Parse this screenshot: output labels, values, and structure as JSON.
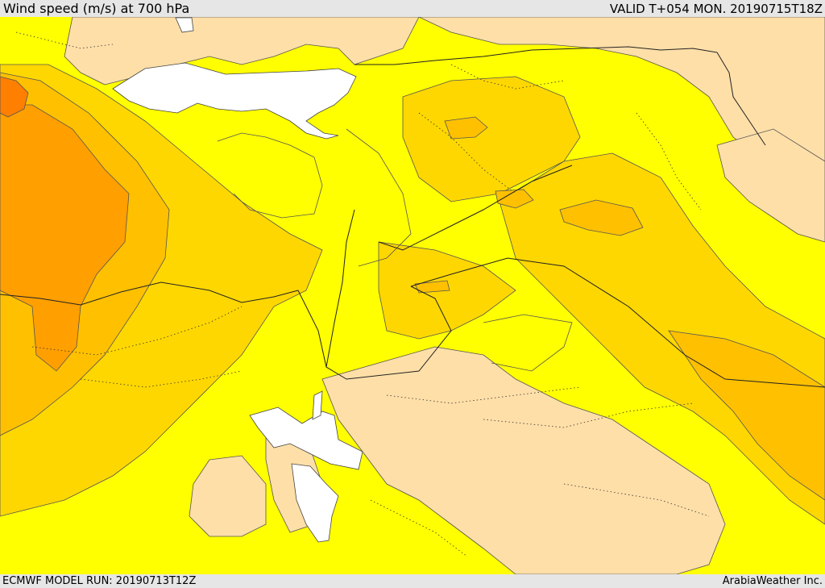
{
  "header": {
    "title": "Wind speed (m/s) at 700 hPa",
    "valid": "VALID T+054 MON. 20190715T18Z"
  },
  "footer": {
    "model_run": "ECMWF MODEL RUN: 20190713T12Z",
    "credit": "ArabiaWeather Inc."
  },
  "colors": {
    "sea_white": "#ffffff",
    "calm_tan": "#ffdfa8",
    "yellow": "#ffff00",
    "light_orange": "#ffd700",
    "orange": "#ffc000",
    "dark_orange": "#ff9f00",
    "red_orange": "#ff7f00",
    "contour_line": "#555555",
    "border_line": "#222222"
  }
}
